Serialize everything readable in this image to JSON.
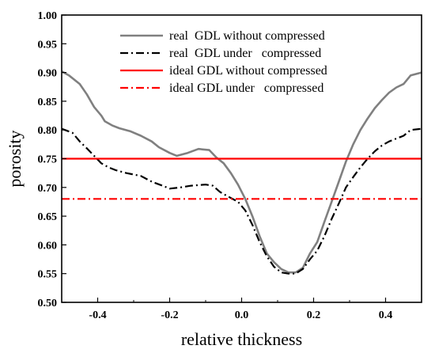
{
  "chart_data": {
    "type": "line",
    "xlabel": "relative thickness",
    "ylabel": "porosity",
    "xlim": [
      -0.5,
      0.5
    ],
    "ylim": [
      0.5,
      1.0
    ],
    "x_ticks": [
      -0.4,
      -0.2,
      0.0,
      0.2,
      0.4
    ],
    "x_tick_labels": [
      "-0.4",
      "-0.2",
      "0.0",
      "0.2",
      "0.4"
    ],
    "y_ticks": [
      0.5,
      0.55,
      0.6,
      0.65,
      0.7,
      0.75,
      0.8,
      0.85,
      0.9,
      0.95,
      1.0
    ],
    "y_tick_labels": [
      "0.50",
      "0.55",
      "0.60",
      "0.65",
      "0.70",
      "0.75",
      "0.80",
      "0.85",
      "0.90",
      "0.95",
      "1.00"
    ],
    "grid": false,
    "legend_position": "top-center",
    "series": [
      {
        "name": "real  GDL without compressed",
        "color": "#808080",
        "style": "solid",
        "points": [
          [
            -0.5,
            0.902
          ],
          [
            -0.48,
            0.895
          ],
          [
            -0.45,
            0.88
          ],
          [
            -0.43,
            0.862
          ],
          [
            -0.41,
            0.84
          ],
          [
            -0.39,
            0.825
          ],
          [
            -0.38,
            0.815
          ],
          [
            -0.36,
            0.808
          ],
          [
            -0.34,
            0.803
          ],
          [
            -0.31,
            0.798
          ],
          [
            -0.28,
            0.79
          ],
          [
            -0.25,
            0.78
          ],
          [
            -0.23,
            0.77
          ],
          [
            -0.2,
            0.76
          ],
          [
            -0.18,
            0.755
          ],
          [
            -0.15,
            0.76
          ],
          [
            -0.12,
            0.767
          ],
          [
            -0.09,
            0.765
          ],
          [
            -0.07,
            0.752
          ],
          [
            -0.05,
            0.742
          ],
          [
            -0.03,
            0.725
          ],
          [
            -0.01,
            0.705
          ],
          [
            0.01,
            0.68
          ],
          [
            0.03,
            0.65
          ],
          [
            0.05,
            0.615
          ],
          [
            0.07,
            0.585
          ],
          [
            0.09,
            0.57
          ],
          [
            0.11,
            0.558
          ],
          [
            0.13,
            0.552
          ],
          [
            0.15,
            0.552
          ],
          [
            0.17,
            0.56
          ],
          [
            0.19,
            0.585
          ],
          [
            0.21,
            0.605
          ],
          [
            0.23,
            0.64
          ],
          [
            0.25,
            0.675
          ],
          [
            0.27,
            0.71
          ],
          [
            0.29,
            0.745
          ],
          [
            0.31,
            0.775
          ],
          [
            0.33,
            0.8
          ],
          [
            0.35,
            0.82
          ],
          [
            0.37,
            0.838
          ],
          [
            0.39,
            0.852
          ],
          [
            0.41,
            0.865
          ],
          [
            0.43,
            0.874
          ],
          [
            0.45,
            0.88
          ],
          [
            0.47,
            0.895
          ],
          [
            0.5,
            0.9
          ]
        ]
      },
      {
        "name": "real  GDL under   compressed",
        "color": "#000000",
        "style": "dashdot",
        "points": [
          [
            -0.5,
            0.802
          ],
          [
            -0.47,
            0.795
          ],
          [
            -0.45,
            0.78
          ],
          [
            -0.43,
            0.768
          ],
          [
            -0.41,
            0.755
          ],
          [
            -0.39,
            0.742
          ],
          [
            -0.37,
            0.735
          ],
          [
            -0.35,
            0.73
          ],
          [
            -0.32,
            0.725
          ],
          [
            -0.28,
            0.72
          ],
          [
            -0.25,
            0.71
          ],
          [
            -0.22,
            0.703
          ],
          [
            -0.2,
            0.698
          ],
          [
            -0.17,
            0.7
          ],
          [
            -0.14,
            0.703
          ],
          [
            -0.1,
            0.705
          ],
          [
            -0.08,
            0.703
          ],
          [
            -0.06,
            0.692
          ],
          [
            -0.04,
            0.685
          ],
          [
            -0.01,
            0.675
          ],
          [
            0.01,
            0.66
          ],
          [
            0.03,
            0.635
          ],
          [
            0.05,
            0.605
          ],
          [
            0.07,
            0.58
          ],
          [
            0.09,
            0.562
          ],
          [
            0.11,
            0.552
          ],
          [
            0.13,
            0.55
          ],
          [
            0.15,
            0.55
          ],
          [
            0.17,
            0.558
          ],
          [
            0.19,
            0.575
          ],
          [
            0.21,
            0.59
          ],
          [
            0.23,
            0.615
          ],
          [
            0.25,
            0.645
          ],
          [
            0.27,
            0.672
          ],
          [
            0.29,
            0.7
          ],
          [
            0.31,
            0.718
          ],
          [
            0.33,
            0.735
          ],
          [
            0.35,
            0.75
          ],
          [
            0.37,
            0.763
          ],
          [
            0.39,
            0.773
          ],
          [
            0.41,
            0.78
          ],
          [
            0.43,
            0.785
          ],
          [
            0.45,
            0.79
          ],
          [
            0.47,
            0.8
          ],
          [
            0.5,
            0.802
          ]
        ]
      },
      {
        "name": "ideal GDL without compressed",
        "color": "#ff0000",
        "style": "solid",
        "points": [
          [
            -0.5,
            0.75
          ],
          [
            0.5,
            0.75
          ]
        ]
      },
      {
        "name": "ideal GDL under   compressed",
        "color": "#ff0000",
        "style": "dashdot",
        "points": [
          [
            -0.5,
            0.68
          ],
          [
            0.5,
            0.68
          ]
        ]
      }
    ]
  }
}
